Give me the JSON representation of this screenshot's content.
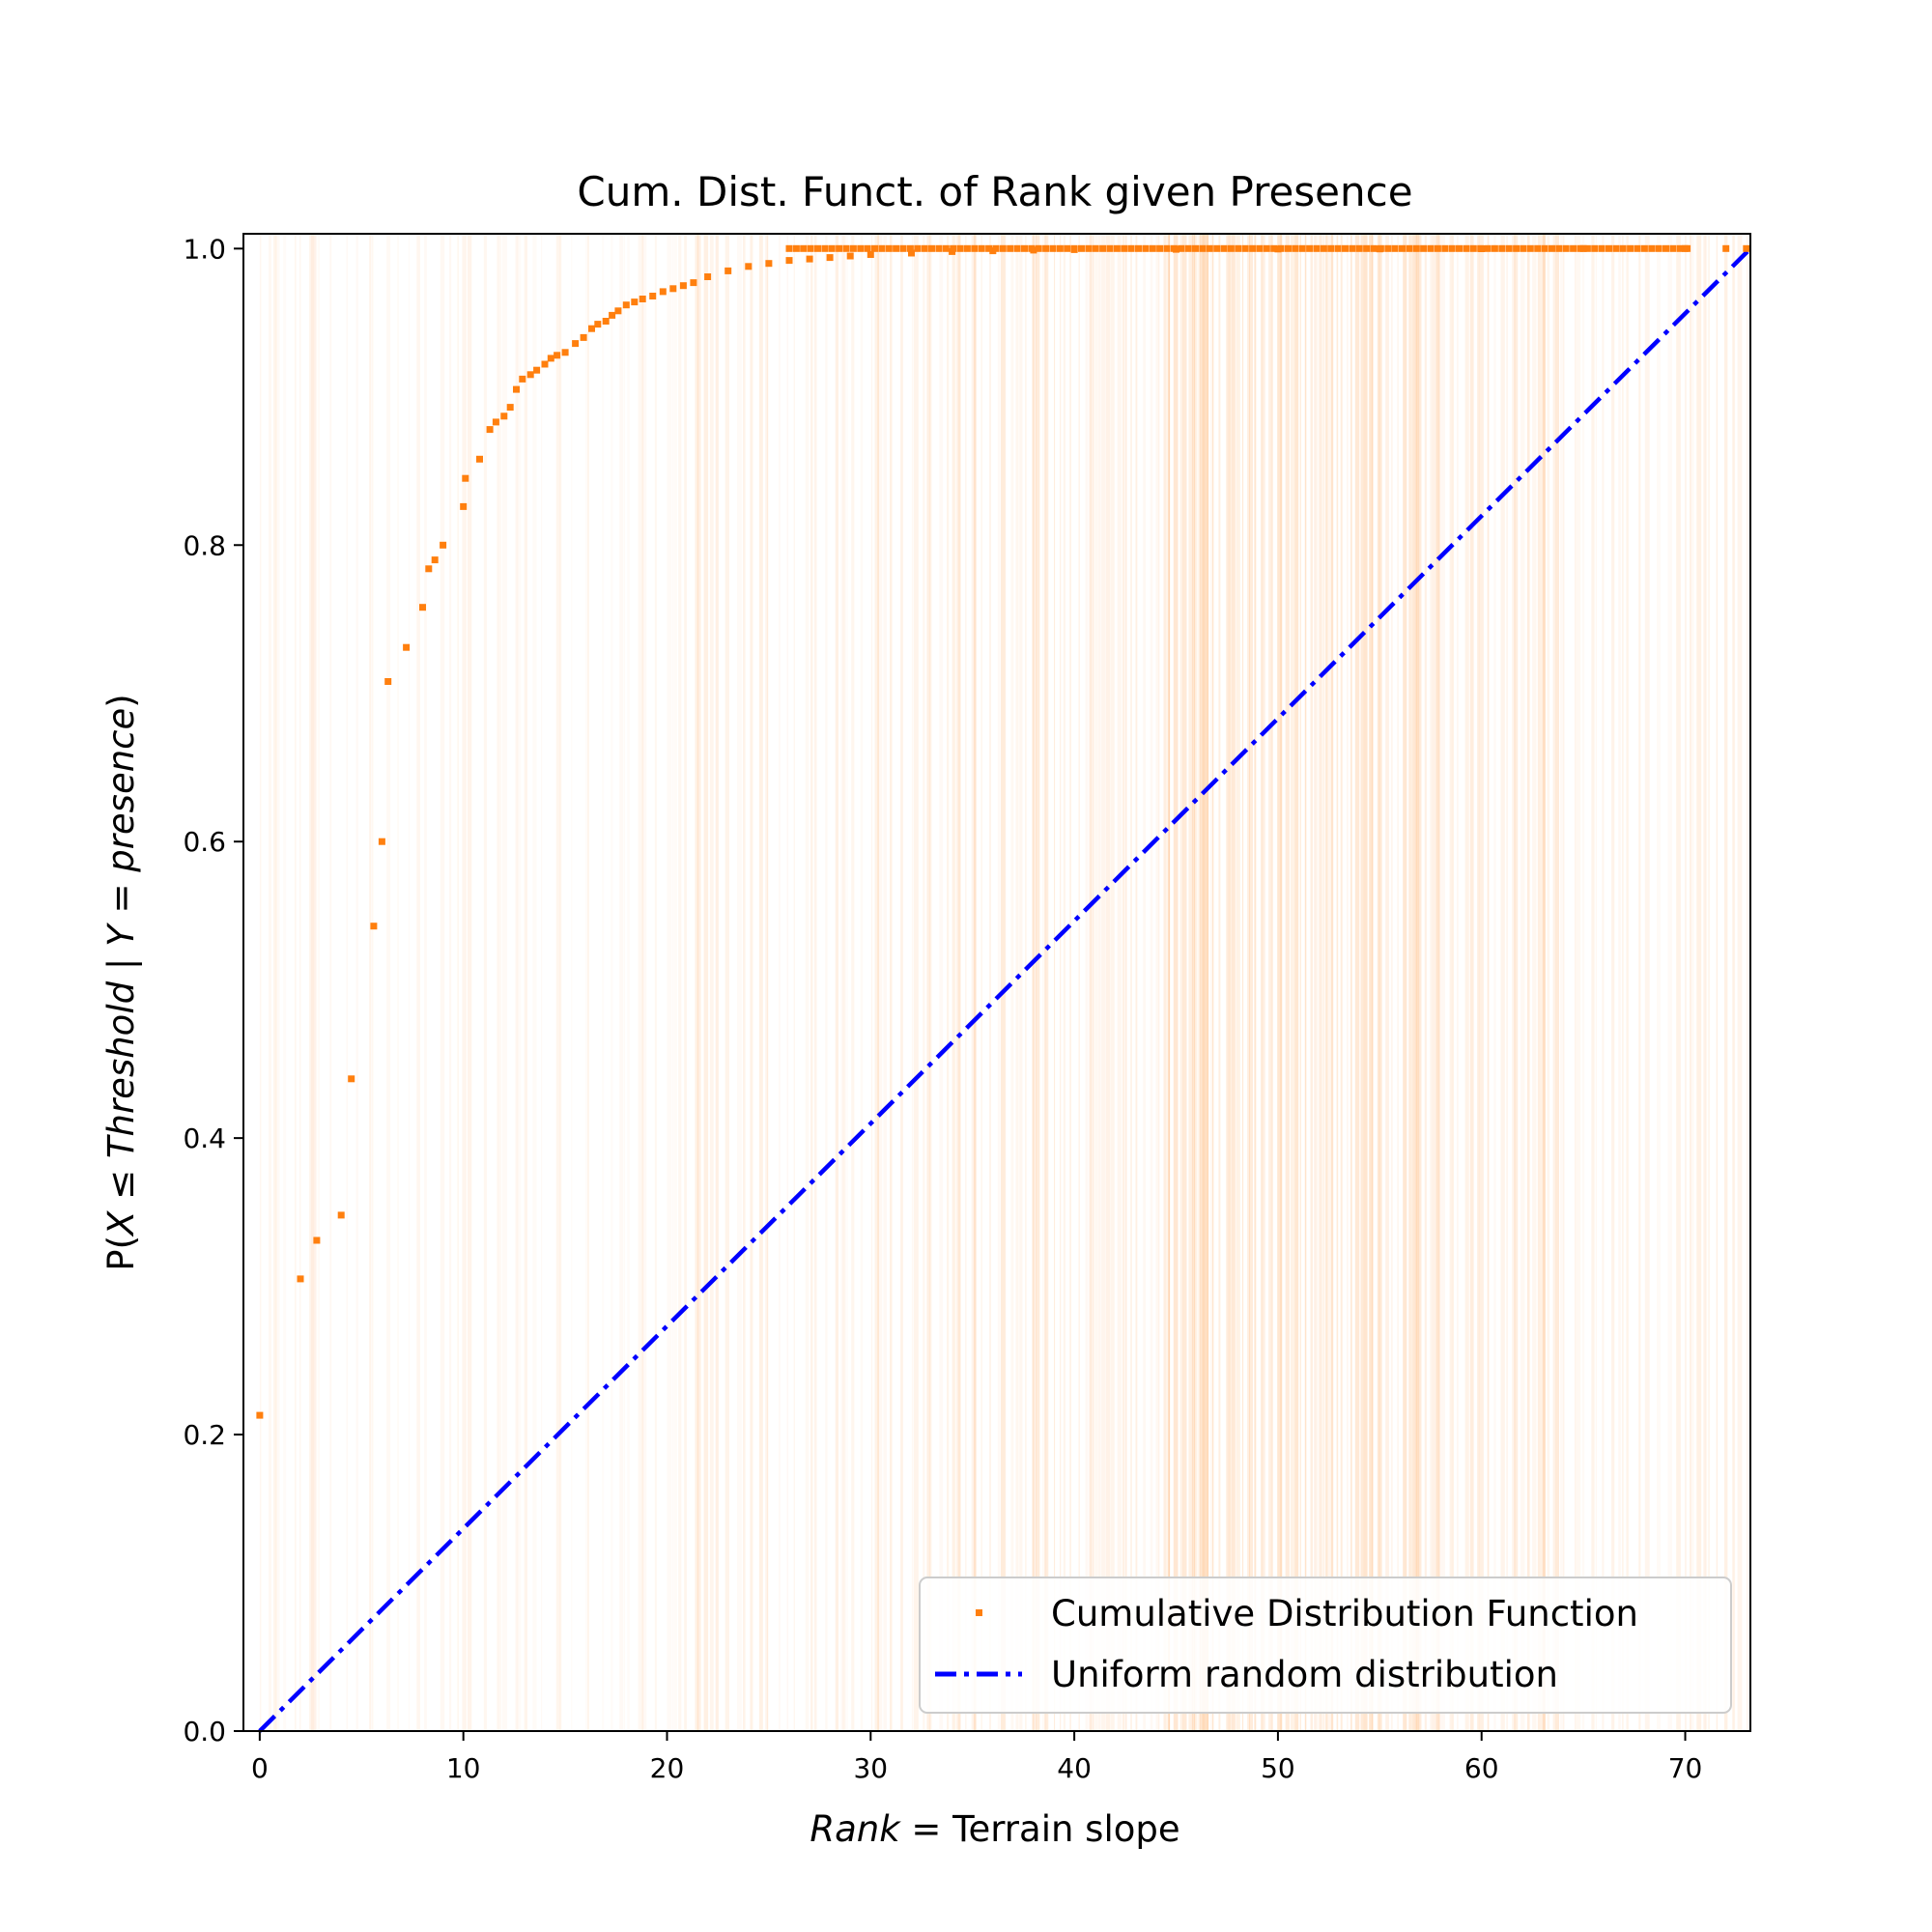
{
  "chart_data": {
    "type": "scatter",
    "title": "Cum. Dist. Funct. of Rank given Presence",
    "xlabel": {
      "italic": "Rank",
      "rest": " = Terrain slope"
    },
    "ylabel": {
      "prefix": "P(",
      "italic1": "X",
      "mid1": " ≤ ",
      "italic2": "Threshold",
      "mid2": "  |  ",
      "italic3": "Y",
      "mid3": " = ",
      "italic4": "presence",
      "suffix": ")"
    },
    "xlim": [
      -0.8,
      73.2
    ],
    "ylim": [
      0,
      1.01
    ],
    "xticks": [
      0,
      10,
      20,
      30,
      40,
      50,
      60,
      70
    ],
    "yticks": [
      0.0,
      0.2,
      0.4,
      0.6,
      0.8,
      1.0
    ],
    "ytick_labels": [
      "0.0",
      "0.2",
      "0.4",
      "0.6",
      "0.8",
      "1.0"
    ],
    "grid": false,
    "legend_position": "lower-right",
    "colors": {
      "cdf": "#ff7f0e",
      "uniform": "#0000ff",
      "bands": "#ff7f0e"
    },
    "series": [
      {
        "name": "Cumulative Distribution Function",
        "marker": "square",
        "x": [
          0,
          2,
          2.8,
          4,
          4.5,
          5.6,
          6,
          6.3,
          7.2,
          8,
          8.3,
          8.6,
          9,
          10,
          10.1,
          10.8,
          11.3,
          11.6,
          12,
          12.3,
          12.6,
          12.9,
          13.3,
          13.6,
          14,
          14.3,
          14.6,
          15,
          15.5,
          15.9,
          16.3,
          16.6,
          17,
          17.3,
          17.6,
          18,
          18.4,
          18.8,
          19.3,
          19.8,
          20.3,
          20.8,
          21.3,
          22,
          23,
          24,
          25,
          26,
          27,
          28,
          29,
          30,
          32,
          34,
          36,
          38,
          40,
          45,
          50,
          55,
          60,
          65,
          70,
          72,
          73
        ],
        "y": [
          0.213,
          0.305,
          0.331,
          0.348,
          0.44,
          0.543,
          0.6,
          0.708,
          0.731,
          0.758,
          0.784,
          0.79,
          0.8,
          0.826,
          0.845,
          0.858,
          0.878,
          0.883,
          0.887,
          0.893,
          0.905,
          0.912,
          0.915,
          0.918,
          0.922,
          0.926,
          0.928,
          0.93,
          0.936,
          0.94,
          0.946,
          0.949,
          0.951,
          0.955,
          0.958,
          0.962,
          0.964,
          0.966,
          0.968,
          0.971,
          0.973,
          0.975,
          0.977,
          0.981,
          0.985,
          0.988,
          0.99,
          0.992,
          0.993,
          0.994,
          0.995,
          0.996,
          0.997,
          0.998,
          0.9985,
          0.999,
          0.9993,
          0.9995,
          0.9997,
          0.9998,
          0.9999,
          1.0,
          1.0,
          1.0,
          1.0
        ]
      },
      {
        "name": "Uniform random distribution",
        "line": "dash-dot",
        "x": [
          0,
          73.2
        ],
        "y": [
          0,
          1.0
        ]
      }
    ],
    "bands_density": [
      {
        "from": 0,
        "to": 20,
        "weight": 0.15
      },
      {
        "from": 20,
        "to": 34,
        "weight": 0.35
      },
      {
        "from": 34,
        "to": 44,
        "weight": 0.55
      },
      {
        "from": 44,
        "to": 58,
        "weight": 0.95
      },
      {
        "from": 58,
        "to": 64,
        "weight": 0.6
      },
      {
        "from": 64,
        "to": 73.2,
        "weight": 0.35
      }
    ]
  }
}
